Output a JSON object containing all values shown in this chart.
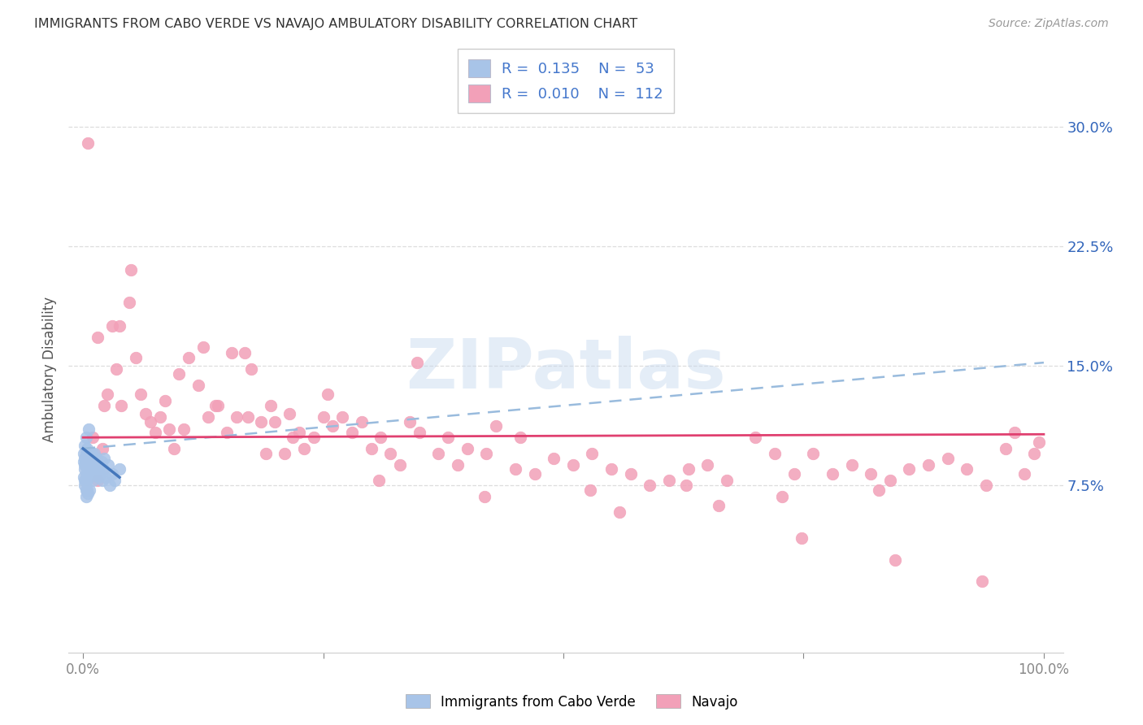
{
  "title": "IMMIGRANTS FROM CABO VERDE VS NAVAJO AMBULATORY DISABILITY CORRELATION CHART",
  "source": "Source: ZipAtlas.com",
  "ylabel": "Ambulatory Disability",
  "xlim": [
    -0.015,
    1.02
  ],
  "ylim": [
    -0.03,
    0.325
  ],
  "yticks": [
    0.075,
    0.15,
    0.225,
    0.3
  ],
  "ytick_labels": [
    "7.5%",
    "15.0%",
    "22.5%",
    "30.0%"
  ],
  "xticks": [
    0.0,
    0.25,
    0.5,
    0.75,
    1.0
  ],
  "xtick_labels": [
    "0.0%",
    "",
    "",
    "",
    "100.0%"
  ],
  "cabo_verde_R": 0.135,
  "cabo_verde_N": 53,
  "navajo_R": 0.01,
  "navajo_N": 112,
  "cabo_verde_color": "#a8c4e8",
  "navajo_color": "#f2a0b8",
  "cabo_verde_line_color": "#4477bb",
  "navajo_line_color": "#e04070",
  "dashed_line_color": "#99bbdd",
  "legend_color": "#4477cc",
  "background_color": "#ffffff",
  "grid_color": "#dddddd",
  "title_color": "#333333",
  "cabo_verde_x": [
    0.001,
    0.001,
    0.001,
    0.002,
    0.002,
    0.002,
    0.002,
    0.002,
    0.002,
    0.003,
    0.003,
    0.003,
    0.003,
    0.003,
    0.004,
    0.004,
    0.004,
    0.004,
    0.005,
    0.005,
    0.005,
    0.006,
    0.006,
    0.006,
    0.007,
    0.007,
    0.007,
    0.008,
    0.008,
    0.009,
    0.009,
    0.01,
    0.01,
    0.011,
    0.011,
    0.012,
    0.012,
    0.013,
    0.014,
    0.015,
    0.016,
    0.017,
    0.018,
    0.019,
    0.02,
    0.021,
    0.022,
    0.024,
    0.026,
    0.028,
    0.03,
    0.033,
    0.038
  ],
  "cabo_verde_y": [
    0.09,
    0.095,
    0.08,
    0.088,
    0.092,
    0.085,
    0.078,
    0.075,
    0.1,
    0.095,
    0.082,
    0.072,
    0.068,
    0.105,
    0.098,
    0.088,
    0.078,
    0.072,
    0.092,
    0.085,
    0.07,
    0.09,
    0.08,
    0.11,
    0.095,
    0.082,
    0.072,
    0.088,
    0.095,
    0.085,
    0.095,
    0.078,
    0.09,
    0.082,
    0.092,
    0.085,
    0.095,
    0.088,
    0.092,
    0.085,
    0.08,
    0.088,
    0.082,
    0.09,
    0.078,
    0.085,
    0.092,
    0.08,
    0.088,
    0.075,
    0.082,
    0.078,
    0.085
  ],
  "navajo_x": [
    0.005,
    0.01,
    0.015,
    0.02,
    0.025,
    0.03,
    0.035,
    0.04,
    0.048,
    0.055,
    0.06,
    0.065,
    0.07,
    0.075,
    0.08,
    0.085,
    0.09,
    0.095,
    0.1,
    0.105,
    0.11,
    0.12,
    0.125,
    0.13,
    0.14,
    0.15,
    0.155,
    0.16,
    0.175,
    0.185,
    0.19,
    0.195,
    0.2,
    0.21,
    0.215,
    0.225,
    0.23,
    0.24,
    0.25,
    0.26,
    0.27,
    0.28,
    0.29,
    0.3,
    0.31,
    0.32,
    0.33,
    0.34,
    0.35,
    0.37,
    0.38,
    0.39,
    0.4,
    0.42,
    0.43,
    0.45,
    0.47,
    0.49,
    0.51,
    0.53,
    0.55,
    0.57,
    0.59,
    0.61,
    0.63,
    0.65,
    0.67,
    0.7,
    0.72,
    0.74,
    0.76,
    0.78,
    0.8,
    0.82,
    0.84,
    0.86,
    0.88,
    0.9,
    0.92,
    0.94,
    0.96,
    0.97,
    0.98,
    0.99,
    0.995,
    0.05,
    0.168,
    0.255,
    0.348,
    0.455,
    0.558,
    0.662,
    0.748,
    0.845,
    0.936,
    0.015,
    0.022,
    0.038,
    0.138,
    0.172,
    0.218,
    0.308,
    0.418,
    0.528,
    0.628,
    0.728,
    0.828
  ],
  "navajo_y": [
    0.29,
    0.105,
    0.168,
    0.098,
    0.132,
    0.175,
    0.148,
    0.125,
    0.19,
    0.155,
    0.132,
    0.12,
    0.115,
    0.108,
    0.118,
    0.128,
    0.11,
    0.098,
    0.145,
    0.11,
    0.155,
    0.138,
    0.162,
    0.118,
    0.125,
    0.108,
    0.158,
    0.118,
    0.148,
    0.115,
    0.095,
    0.125,
    0.115,
    0.095,
    0.12,
    0.108,
    0.098,
    0.105,
    0.118,
    0.112,
    0.118,
    0.108,
    0.115,
    0.098,
    0.105,
    0.095,
    0.088,
    0.115,
    0.108,
    0.095,
    0.105,
    0.088,
    0.098,
    0.095,
    0.112,
    0.085,
    0.082,
    0.092,
    0.088,
    0.095,
    0.085,
    0.082,
    0.075,
    0.078,
    0.085,
    0.088,
    0.078,
    0.105,
    0.095,
    0.082,
    0.095,
    0.082,
    0.088,
    0.082,
    0.078,
    0.085,
    0.088,
    0.092,
    0.085,
    0.075,
    0.098,
    0.108,
    0.082,
    0.095,
    0.102,
    0.21,
    0.158,
    0.132,
    0.152,
    0.105,
    0.058,
    0.062,
    0.042,
    0.028,
    0.015,
    0.078,
    0.125,
    0.175,
    0.125,
    0.118,
    0.105,
    0.078,
    0.068,
    0.072,
    0.075,
    0.068,
    0.072
  ],
  "cabo_verde_trend_x": [
    0.0,
    0.038
  ],
  "cabo_verde_trend_y": [
    0.098,
    0.08
  ],
  "navajo_trend_x": [
    0.0,
    1.0
  ],
  "navajo_trend_y": [
    0.105,
    0.107
  ],
  "dashed_trend_x": [
    0.0,
    1.0
  ],
  "dashed_trend_y": [
    0.098,
    0.152
  ]
}
